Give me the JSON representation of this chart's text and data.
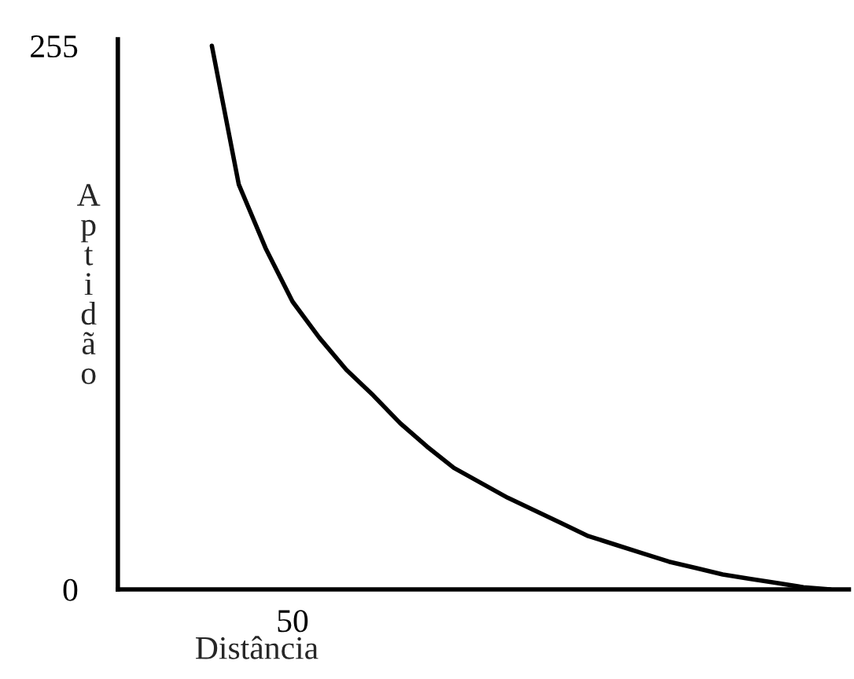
{
  "chart_data": {
    "type": "line",
    "xlabel": "Distância",
    "ylabel": "Aptidão",
    "categories": [
      null,
      null,
      null,
      "50",
      null,
      null,
      null,
      null,
      null,
      null,
      null,
      null,
      null,
      null,
      null,
      null,
      null,
      null,
      null,
      null,
      null,
      null,
      null,
      null
    ],
    "series": [
      {
        "color": "#000000",
        "values": [
          255,
          190,
          160,
          135,
          118,
          103,
          91,
          78,
          67,
          57,
          50,
          43,
          37,
          31,
          25,
          21,
          17,
          13,
          10,
          7,
          5,
          3,
          1,
          0
        ]
      }
    ],
    "ylim": [
      0,
      258
    ],
    "yticks": [
      0,
      255
    ],
    "grid": false,
    "legend": false
  }
}
